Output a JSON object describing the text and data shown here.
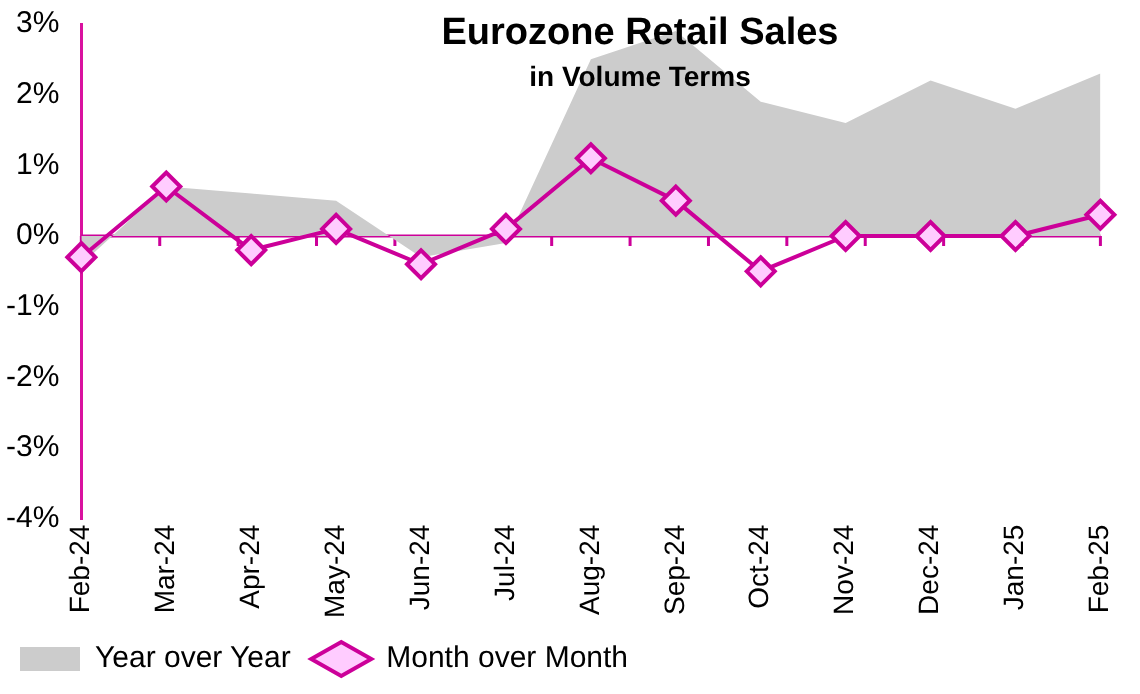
{
  "chart_data": {
    "type": "line",
    "title": "Eurozone Retail Sales",
    "subtitle": "in Volume Terms",
    "categories": [
      "Feb-24",
      "Mar-24",
      "Apr-24",
      "May-24",
      "Jun-24",
      "Jul-24",
      "Aug-24",
      "Sep-24",
      "Oct-24",
      "Nov-24",
      "Dec-24",
      "Jan-25",
      "Feb-25"
    ],
    "series": [
      {
        "name": "Year over Year",
        "type": "area",
        "marker": "none",
        "color": "#cccccc",
        "values": [
          -0.4,
          0.7,
          0.6,
          0.5,
          -0.3,
          -0.1,
          2.5,
          2.9,
          1.9,
          1.6,
          2.2,
          1.8,
          2.3
        ]
      },
      {
        "name": "Month over Month",
        "type": "line",
        "color": "#cc0099",
        "values": [
          -0.3,
          0.7,
          -0.2,
          0.1,
          -0.4,
          0.1,
          1.1,
          0.5,
          -0.5,
          0,
          0,
          0,
          0.3
        ]
      }
    ],
    "ylim": [
      -4,
      3
    ],
    "yticks": [
      {
        "value": -4,
        "label": "-4%"
      },
      {
        "value": -3,
        "label": "-3%"
      },
      {
        "value": -2,
        "label": "-2%"
      },
      {
        "value": -1,
        "label": "-1%"
      },
      {
        "value": 0,
        "label": "0%"
      },
      {
        "value": 1,
        "label": "1%"
      },
      {
        "value": 2,
        "label": "2%"
      },
      {
        "value": 3,
        "label": "3%"
      }
    ],
    "ref_lines": [
      {
        "axis": "y",
        "value": 0,
        "color": "#cc0099"
      }
    ],
    "grid": false,
    "legend": "bottom",
    "marker": "diamond",
    "line_style": "solid"
  }
}
